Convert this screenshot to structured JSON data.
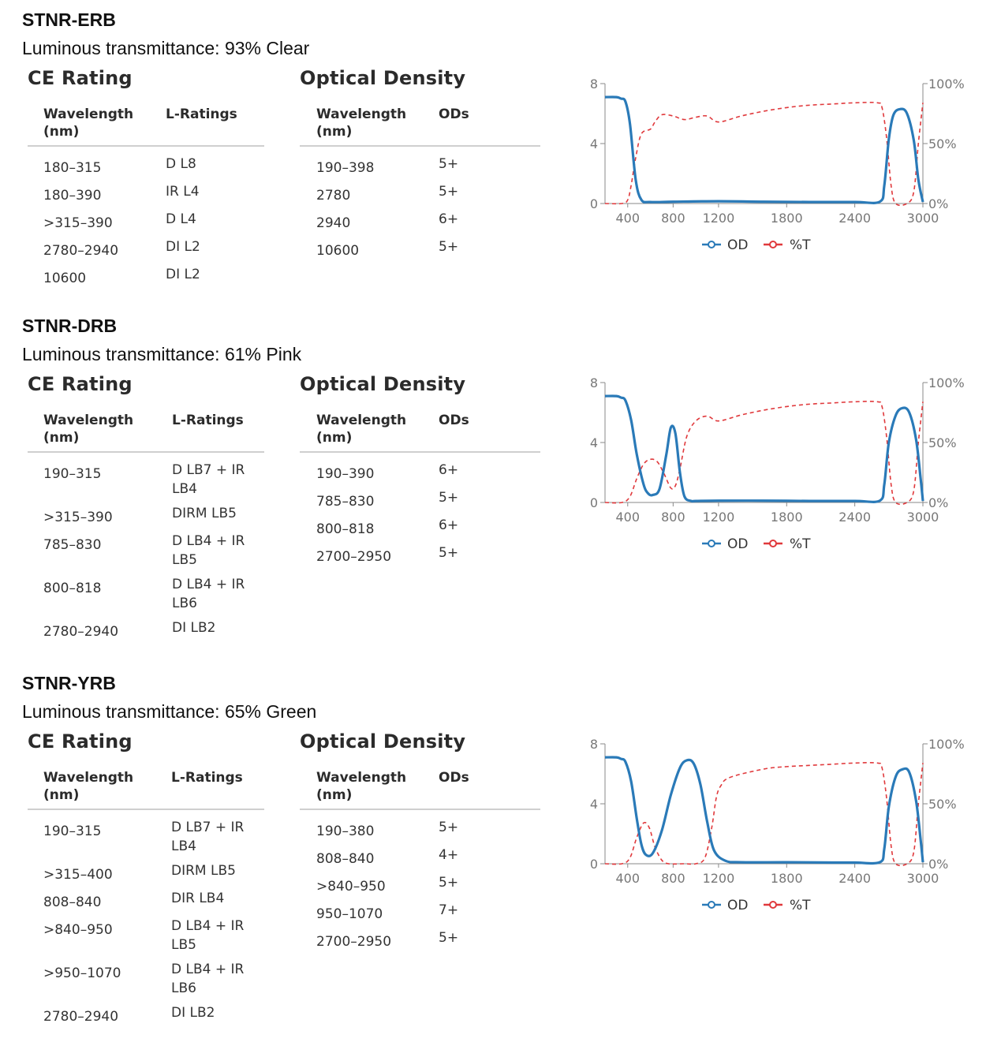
{
  "products": [
    {
      "name": "STNR-ERB",
      "luminous": "Luminous transmittance: 93% Clear",
      "ce": {
        "title": "CE Rating",
        "headers": [
          "Wavelength (nm)",
          "L-Ratings"
        ],
        "rows": [
          [
            "180–315",
            "D L8"
          ],
          [
            "180–390",
            "IR L4"
          ],
          [
            ">315–390",
            "D L4"
          ],
          [
            "2780–2940",
            "DI L2"
          ],
          [
            "10600",
            "DI L2"
          ]
        ]
      },
      "od": {
        "title": "Optical Density",
        "headers": [
          "Wavelength (nm)",
          "ODs"
        ],
        "rows": [
          [
            "190–398",
            "5+"
          ],
          [
            "2780",
            "5+"
          ],
          [
            "2940",
            "6+"
          ],
          [
            "10600",
            "5+"
          ]
        ]
      }
    },
    {
      "name": "STNR-DRB",
      "luminous": "Luminous transmittance: 61% Pink",
      "ce": {
        "title": "CE Rating",
        "headers": [
          "Wavelength (nm)",
          "L-Ratings"
        ],
        "rows": [
          [
            "190–315",
            "D LB7 + IR LB4"
          ],
          [
            ">315–390",
            "DIRM LB5"
          ],
          [
            "785–830",
            "D LB4 + IR LB5"
          ],
          [
            "800–818",
            "D LB4 + IR LB6"
          ],
          [
            "2780–2940",
            "DI LB2"
          ]
        ]
      },
      "od": {
        "title": "Optical Density",
        "headers": [
          "Wavelength (nm)",
          "ODs"
        ],
        "rows": [
          [
            "190–390",
            "6+"
          ],
          [
            "785–830",
            "5+"
          ],
          [
            "800–818",
            "6+"
          ],
          [
            "2700–2950",
            "5+"
          ]
        ]
      }
    },
    {
      "name": "STNR-YRB",
      "luminous": "Luminous transmittance: 65% Green",
      "ce": {
        "title": "CE Rating",
        "headers": [
          "Wavelength (nm)",
          "L-Ratings"
        ],
        "rows": [
          [
            "190–315",
            "D LB7 + IR LB4"
          ],
          [
            ">315–400",
            "DIRM LB5"
          ],
          [
            "808–840",
            "DIR LB4"
          ],
          [
            ">840–950",
            "D LB4 + IR LB5"
          ],
          [
            ">950–1070",
            "D LB4 + IR LB6"
          ],
          [
            "2780–2940",
            "DI LB2"
          ]
        ]
      },
      "od": {
        "title": "Optical Density",
        "headers": [
          "Wavelength (nm)",
          "ODs"
        ],
        "rows": [
          [
            "190–380",
            "5+"
          ],
          [
            "808–840",
            "4+"
          ],
          [
            ">840–950",
            "5+"
          ],
          [
            "950–1070",
            "7+"
          ],
          [
            "2700–2950",
            "5+"
          ]
        ]
      }
    }
  ],
  "chart_data": [
    {
      "type": "line",
      "x_ticks": [
        400,
        800,
        1200,
        1800,
        2400,
        3000
      ],
      "y_left_ticks": [
        "0",
        "4",
        "8"
      ],
      "y_right_ticks": [
        "0%",
        "50%",
        "100%"
      ],
      "xlim": [
        200,
        3000
      ],
      "ylim_left": [
        0,
        8
      ],
      "ylim_right": [
        0,
        100
      ],
      "legend_position": "bottom-center",
      "series": [
        {
          "name": "OD",
          "color": "#2a7ab8",
          "style": "solid",
          "x": [
            200,
            300,
            340,
            380,
            420,
            470,
            520,
            600,
            800,
            1200,
            1600,
            2000,
            2400,
            2620,
            2660,
            2700,
            2740,
            2800,
            2860,
            2920,
            2960,
            3000
          ],
          "y": [
            7.1,
            7.1,
            7.0,
            6.8,
            5.3,
            1.6,
            0.25,
            0.1,
            0.12,
            0.15,
            0.12,
            0.1,
            0.1,
            0.12,
            1.2,
            4.3,
            5.9,
            6.3,
            6.0,
            4.2,
            1.6,
            0.1
          ]
        },
        {
          "name": "%T",
          "color": "#e0393c",
          "style": "dashed",
          "x": [
            200,
            350,
            400,
            430,
            470,
            520,
            600,
            640,
            700,
            800,
            900,
            1000,
            1100,
            1200,
            1400,
            1600,
            1800,
            2000,
            2200,
            2400,
            2600,
            2640,
            2680,
            2720,
            2760,
            2860,
            2920,
            2960,
            3000
          ],
          "y": [
            0,
            0,
            3,
            15,
            38,
            58,
            62,
            68,
            74,
            73,
            70,
            72,
            73,
            68,
            73,
            77,
            80,
            82,
            83,
            84,
            84,
            80,
            55,
            15,
            0,
            0,
            10,
            50,
            84
          ]
        }
      ]
    },
    {
      "type": "line",
      "x_ticks": [
        400,
        800,
        1200,
        1800,
        2400,
        3000
      ],
      "y_left_ticks": [
        "0",
        "4",
        "8"
      ],
      "y_right_ticks": [
        "0%",
        "50%",
        "100%"
      ],
      "xlim": [
        200,
        3000
      ],
      "ylim_left": [
        0,
        8
      ],
      "ylim_right": [
        0,
        100
      ],
      "legend_position": "bottom-center",
      "series": [
        {
          "name": "OD",
          "color": "#2a7ab8",
          "style": "solid",
          "x": [
            200,
            300,
            340,
            380,
            430,
            480,
            540,
            580,
            620,
            680,
            740,
            780,
            820,
            860,
            900,
            960,
            1000,
            1200,
            1600,
            2000,
            2400,
            2620,
            2660,
            2700,
            2760,
            2820,
            2880,
            2940,
            2980,
            3000
          ],
          "y": [
            7.1,
            7.1,
            7.0,
            6.8,
            5.5,
            3.2,
            1.2,
            0.6,
            0.5,
            0.9,
            3.2,
            5.0,
            4.6,
            2.0,
            0.4,
            0.1,
            0.1,
            0.12,
            0.12,
            0.1,
            0.1,
            0.12,
            1.2,
            4.0,
            5.8,
            6.3,
            6.0,
            4.2,
            1.6,
            0.1
          ]
        },
        {
          "name": "%T",
          "color": "#e0393c",
          "style": "dashed",
          "x": [
            200,
            350,
            420,
            480,
            540,
            600,
            660,
            720,
            780,
            820,
            860,
            920,
            1000,
            1100,
            1200,
            1400,
            1600,
            1800,
            2000,
            2200,
            2400,
            2600,
            2640,
            2680,
            2720,
            2760,
            2860,
            2920,
            2960,
            3000
          ],
          "y": [
            0,
            0,
            5,
            20,
            32,
            36,
            34,
            24,
            12,
            14,
            28,
            55,
            68,
            72,
            68,
            73,
            77,
            80,
            82,
            83,
            84,
            84,
            80,
            55,
            15,
            0,
            0,
            10,
            50,
            84
          ]
        }
      ]
    },
    {
      "type": "line",
      "x_ticks": [
        400,
        800,
        1200,
        1800,
        2400,
        3000
      ],
      "y_left_ticks": [
        "0",
        "4",
        "8"
      ],
      "y_right_ticks": [
        "0%",
        "50%",
        "100%"
      ],
      "xlim": [
        200,
        3000
      ],
      "ylim_left": [
        0,
        8
      ],
      "ylim_right": [
        0,
        100
      ],
      "legend_position": "bottom-center",
      "series": [
        {
          "name": "OD",
          "color": "#2a7ab8",
          "style": "solid",
          "x": [
            200,
            300,
            340,
            380,
            430,
            480,
            520,
            560,
            620,
            700,
            780,
            860,
            920,
            980,
            1040,
            1100,
            1160,
            1260,
            1400,
            1800,
            2200,
            2400,
            2620,
            2660,
            2700,
            2760,
            2820,
            2880,
            2940,
            2980,
            3000
          ],
          "y": [
            7.1,
            7.1,
            7.0,
            6.8,
            5.5,
            3.0,
            1.3,
            0.6,
            0.7,
            2.2,
            4.6,
            6.4,
            6.9,
            6.7,
            5.3,
            2.8,
            0.9,
            0.2,
            0.1,
            0.1,
            0.08,
            0.08,
            0.1,
            1.0,
            3.8,
            5.8,
            6.3,
            6.1,
            4.2,
            1.6,
            0.1
          ]
        },
        {
          "name": "%T",
          "color": "#e0393c",
          "style": "dashed",
          "x": [
            200,
            350,
            420,
            480,
            540,
            590,
            640,
            700,
            760,
            900,
            1000,
            1080,
            1140,
            1180,
            1220,
            1300,
            1600,
            1800,
            2000,
            2200,
            2400,
            2600,
            2640,
            2680,
            2720,
            2760,
            2860,
            2920,
            2960,
            3000
          ],
          "y": [
            0,
            0,
            5,
            22,
            34,
            30,
            14,
            3,
            0,
            0,
            0,
            5,
            30,
            55,
            65,
            72,
            79,
            81,
            82,
            83,
            84,
            84,
            80,
            55,
            15,
            0,
            0,
            10,
            50,
            84
          ]
        }
      ]
    }
  ]
}
